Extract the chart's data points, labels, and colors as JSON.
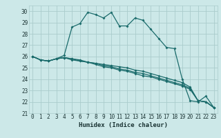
{
  "xlabel": "Humidex (Indice chaleur)",
  "bg_color": "#cce8e8",
  "grid_color": "#aacccc",
  "line_color": "#1a6b6b",
  "xlim": [
    -0.5,
    23.5
  ],
  "ylim": [
    21,
    30.5
  ],
  "yticks": [
    21,
    22,
    23,
    24,
    25,
    26,
    27,
    28,
    29,
    30
  ],
  "xticks": [
    0,
    1,
    2,
    3,
    4,
    5,
    6,
    7,
    8,
    9,
    10,
    11,
    12,
    13,
    14,
    15,
    16,
    17,
    18,
    19,
    20,
    21,
    22,
    23
  ],
  "series": [
    [
      26.0,
      25.7,
      25.6,
      25.8,
      26.1,
      28.6,
      28.9,
      29.9,
      29.7,
      29.4,
      29.9,
      28.7,
      28.7,
      29.4,
      29.2,
      28.4,
      27.6,
      26.8,
      26.7,
      24.0,
      22.1,
      22.0,
      22.5,
      21.5
    ],
    [
      26.0,
      25.7,
      25.6,
      25.8,
      25.9,
      25.8,
      25.7,
      25.5,
      25.4,
      25.3,
      25.2,
      25.1,
      25.0,
      24.8,
      24.7,
      24.5,
      24.3,
      24.1,
      23.9,
      23.7,
      23.3,
      22.1,
      22.0,
      21.5
    ],
    [
      26.0,
      25.7,
      25.6,
      25.8,
      25.9,
      25.8,
      25.6,
      25.5,
      25.4,
      25.2,
      25.1,
      24.9,
      24.8,
      24.6,
      24.5,
      24.3,
      24.1,
      23.9,
      23.7,
      23.5,
      23.2,
      22.1,
      22.0,
      21.5
    ],
    [
      26.0,
      25.7,
      25.6,
      25.8,
      25.9,
      25.7,
      25.6,
      25.5,
      25.3,
      25.1,
      25.0,
      24.8,
      24.7,
      24.5,
      24.3,
      24.2,
      24.0,
      23.8,
      23.6,
      23.4,
      23.1,
      22.1,
      22.0,
      21.5
    ]
  ]
}
